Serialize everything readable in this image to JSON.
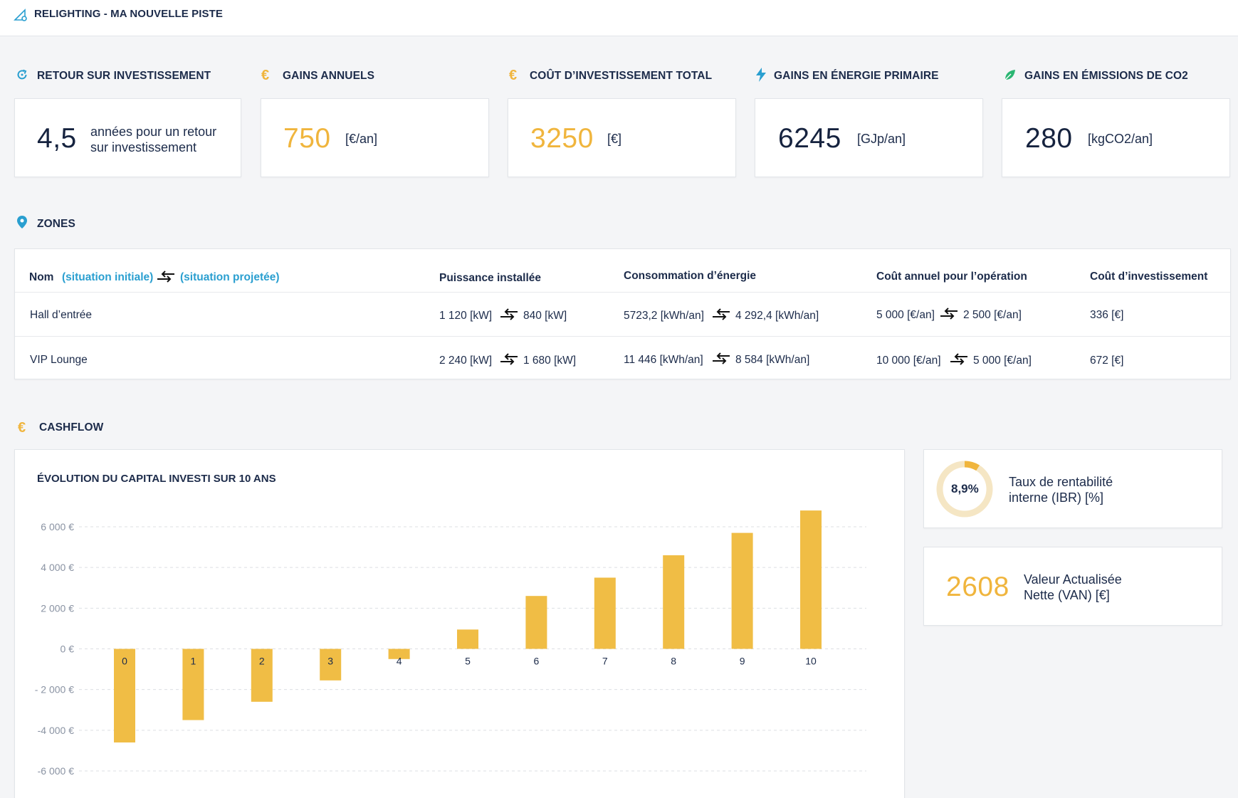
{
  "header": {
    "title": "RELIGHTING - MA NOUVELLE PISTE",
    "icon": "ruler-pencil-icon"
  },
  "kpis": [
    {
      "id": "roi",
      "label": "RETOUR SUR INVESTISSEMENT",
      "icon": "refresh-icon",
      "value": "4,5",
      "unit": "",
      "desc_line1": "années pour un retour",
      "desc_line2": "sur investissement",
      "color": "#16233f"
    },
    {
      "id": "gains",
      "label": "GAINS ANNUELS",
      "icon": "euro-icon",
      "value": "750",
      "unit": "[€/an]",
      "color": "#f0b53d"
    },
    {
      "id": "cost",
      "label": "COÛT D’INVESTISSEMENT TOTAL",
      "icon": "euro-icon",
      "value": "3250",
      "unit": "[€]",
      "color": "#f0b53d"
    },
    {
      "id": "energy",
      "label": "GAINS EN ÉNERGIE PRIMAIRE",
      "icon": "lightning-icon",
      "value": "6245",
      "unit": "[GJp/an]",
      "color": "#16233f"
    },
    {
      "id": "co2",
      "label": "GAINS EN ÉMISSIONS DE CO2",
      "icon": "leaf-icon",
      "value": "280",
      "unit": "[kgCO2/an]",
      "color": "#16233f"
    }
  ],
  "zones": {
    "label": "ZONES",
    "headers": {
      "nom": "Nom",
      "initial": "(situation initiale)",
      "projected": "(situation projetée)",
      "power": "Puissance installée",
      "consumption": "Consommation d’énergie",
      "op_cost": "Coût annuel pour l’opération",
      "invest": "Coût d’investissement"
    },
    "rows": [
      {
        "name": "Hall d’entrée",
        "power_from": "1 120 [kW]",
        "power_to": "840 [kW]",
        "cons_from": "5723,2 [kWh/an]",
        "cons_to": "4 292,4 [kWh/an]",
        "op_from": "5 000 [€/an]",
        "op_to": "2 500 [€/an]",
        "invest": "336 [€]"
      },
      {
        "name": "VIP Lounge",
        "power_from": "2 240 [kW]",
        "power_to": "1 680 [kW]",
        "cons_from": "11 446 [kWh/an]",
        "cons_to": "8 584 [kWh/an]",
        "op_from": "10 000 [€/an]",
        "op_to": "5 000 [€/an]",
        "invest": "672 [€]"
      }
    ]
  },
  "cashflow": {
    "label": "CASHFLOW",
    "irr": {
      "value": "8,9%",
      "fraction": 0.089,
      "desc_line1": "Taux de rentabilité",
      "desc_line2": "interne (IBR) [%]"
    },
    "npv": {
      "value": "2608",
      "desc_line1": "Valeur Actualisée",
      "desc_line2": "Nette (VAN) [€]"
    }
  },
  "chart_data": {
    "type": "bar",
    "title": "ÉVOLUTION DU CAPITAL INVESTI SUR 10 ANS",
    "categories": [
      "0",
      "1",
      "2",
      "3",
      "4",
      "5",
      "6",
      "7",
      "8",
      "9",
      "10"
    ],
    "values": [
      -4600,
      -3500,
      -2600,
      -1550,
      -500,
      950,
      2600,
      3500,
      4600,
      5700,
      6800
    ],
    "ylim": [
      -6000,
      6000
    ],
    "yticks": [
      6000,
      4000,
      2000,
      0,
      -2000,
      -4000,
      -6000
    ],
    "ytick_labels": [
      "6 000 €",
      "4 000 €",
      "2 000 €",
      "0 €",
      "- 2 000 €",
      "-4 000 €",
      "-6 000 €"
    ],
    "bar_color": "#f0bd45",
    "grid": true,
    "xlabel": "",
    "ylabel": ""
  },
  "colors": {
    "accent_blue": "#2a9fd0",
    "accent_yellow": "#f0b53d",
    "navy": "#16233f",
    "green": "#2bb673"
  }
}
